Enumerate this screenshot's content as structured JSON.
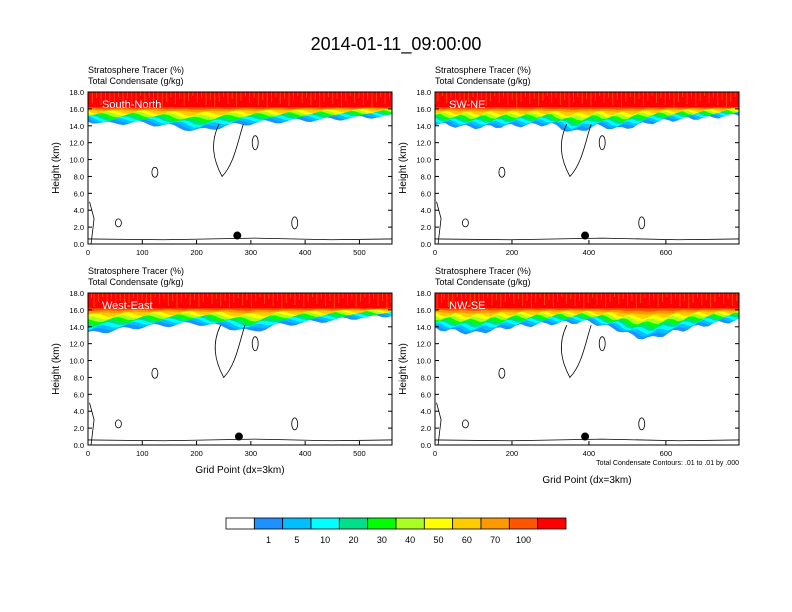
{
  "title": "2014-01-11_09:00:00",
  "colorbar": {
    "levels": [
      "1",
      "5",
      "10",
      "20",
      "30",
      "40",
      "50",
      "60",
      "70",
      "100"
    ],
    "colors": [
      "#ffffff",
      "#1e90ff",
      "#00bfff",
      "#00ffff",
      "#00e08a",
      "#00ff00",
      "#aaff22",
      "#ffff00",
      "#ffcc00",
      "#ff9900",
      "#ff5500",
      "#ff0000"
    ]
  },
  "chart_data": [
    {
      "type": "heatmap",
      "panel_label": "South-North",
      "field_label": "Stratosphere Tracer   (%)",
      "contour_label": "Total Condensate   (g/kg)",
      "ylabel": "Height (km)",
      "xlabel": "",
      "xlim": [
        0,
        560
      ],
      "ylim": [
        0,
        18
      ],
      "xticks": [
        "0",
        "100",
        "200",
        "300",
        "400",
        "500"
      ],
      "yticks": [
        "0.0",
        "2.0",
        "4.0",
        "6.0",
        "8.0",
        "10.0",
        "12.0",
        "14.0",
        "16.0",
        "18.0"
      ],
      "tracer_100_base_km": 16.2,
      "tracer_1_base_x": [
        0,
        40,
        80,
        150,
        200,
        240,
        280,
        320,
        380,
        450,
        500,
        560
      ],
      "tracer_1_base_y": [
        14.6,
        14.2,
        14.4,
        14.0,
        13.4,
        13.8,
        14.2,
        14.4,
        14.6,
        14.8,
        15.0,
        15.2
      ],
      "marker": {
        "x": 275,
        "y": 1.0
      }
    },
    {
      "type": "heatmap",
      "panel_label": "SW-NE",
      "field_label": "Stratosphere Tracer   (%)",
      "contour_label": "Total Condensate   (g/kg)",
      "ylabel": "Height (km)",
      "xlabel": "",
      "xlim": [
        0,
        790
      ],
      "ylim": [
        0,
        18
      ],
      "xticks": [
        "0",
        "200",
        "400",
        "600"
      ],
      "yticks": [
        "0.0",
        "2.0",
        "4.0",
        "6.0",
        "8.0",
        "10.0",
        "12.0",
        "14.0",
        "16.0",
        "18.0"
      ],
      "tracer_100_base_km": 16.2,
      "tracer_1_base_x": [
        0,
        100,
        200,
        300,
        360,
        420,
        480,
        560,
        640,
        720,
        790
      ],
      "tracer_1_base_y": [
        14.2,
        13.8,
        14.0,
        14.2,
        13.2,
        14.0,
        13.6,
        14.4,
        14.8,
        15.0,
        15.4
      ],
      "marker": {
        "x": 390,
        "y": 1.0
      }
    },
    {
      "type": "heatmap",
      "panel_label": "West-East",
      "field_label": "Stratosphere Tracer   (%)",
      "contour_label": "Total Condensate   (g/kg)",
      "ylabel": "Height (km)",
      "xlabel": "Grid Point (dx=3km)",
      "xlim": [
        0,
        560
      ],
      "ylim": [
        0,
        18
      ],
      "xticks": [
        "0",
        "100",
        "200",
        "300",
        "400",
        "500"
      ],
      "yticks": [
        "0.0",
        "2.0",
        "4.0",
        "6.0",
        "8.0",
        "10.0",
        "12.0",
        "14.0",
        "16.0",
        "18.0"
      ],
      "tracer_100_base_km": 16.2,
      "tracer_1_base_x": [
        0,
        50,
        100,
        150,
        200,
        250,
        300,
        350,
        420,
        480,
        560
      ],
      "tracer_1_base_y": [
        13.2,
        13.6,
        14.0,
        14.2,
        14.4,
        14.0,
        13.4,
        14.2,
        14.6,
        15.0,
        15.4
      ],
      "marker": {
        "x": 278,
        "y": 1.0
      }
    },
    {
      "type": "heatmap",
      "panel_label": "NW-SE",
      "field_label": "Stratosphere Tracer   (%)",
      "contour_label": "Total Condensate   (g/kg)",
      "ylabel": "Height (km)",
      "xlabel": "Grid Point (dx=3km)",
      "note": "Total Condensate Contours: .01 to .01 by .000",
      "xlim": [
        0,
        790
      ],
      "ylim": [
        0,
        18
      ],
      "xticks": [
        "0",
        "200",
        "400",
        "600"
      ],
      "yticks": [
        "0.0",
        "2.0",
        "4.0",
        "6.0",
        "8.0",
        "10.0",
        "12.0",
        "14.0",
        "16.0",
        "18.0"
      ],
      "tracer_100_base_km": 16.2,
      "tracer_1_base_x": [
        0,
        100,
        200,
        300,
        400,
        480,
        520,
        560,
        620,
        700,
        790
      ],
      "tracer_1_base_y": [
        13.8,
        13.2,
        14.0,
        14.4,
        14.6,
        13.6,
        12.8,
        12.6,
        13.4,
        14.2,
        14.8
      ],
      "marker": {
        "x": 390,
        "y": 1.0
      }
    }
  ]
}
